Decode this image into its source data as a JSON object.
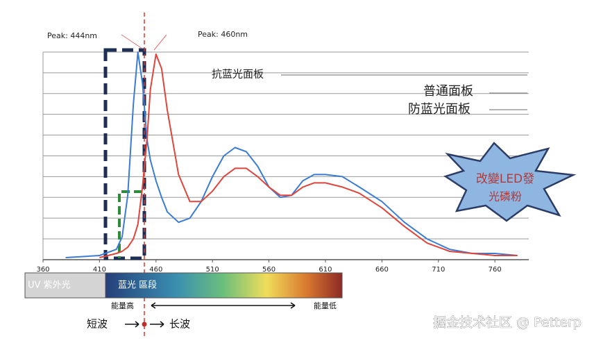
{
  "chart_data": {
    "type": "line",
    "x": [
      380,
      410,
      425,
      430,
      435,
      440,
      444,
      448,
      452,
      455,
      460,
      465,
      470,
      480,
      490,
      500,
      510,
      520,
      530,
      540,
      550,
      560,
      570,
      580,
      590,
      600,
      610,
      625,
      640,
      660,
      680,
      700,
      720,
      740,
      760,
      780
    ],
    "series": [
      {
        "name": "普通面板",
        "color": "#3a7bd5",
        "values": [
          1,
          2,
          5,
          11,
          31,
          75,
          100,
          85,
          58,
          48,
          38,
          30,
          23,
          18,
          20,
          28,
          40,
          50,
          54,
          52,
          45,
          35,
          30,
          31,
          38,
          41,
          41,
          40,
          35,
          28,
          18,
          10,
          5,
          3,
          3,
          2
        ]
      },
      {
        "name": "防蓝光面板",
        "color": "#e0443a",
        "values": [
          null,
          1,
          3,
          4,
          6,
          10,
          17,
          35,
          58,
          82,
          99,
          92,
          72,
          41,
          28,
          28,
          33,
          40,
          44,
          44,
          40,
          35,
          31,
          31,
          35,
          37,
          37,
          35,
          32,
          25,
          16,
          8,
          4,
          3,
          2,
          2
        ]
      }
    ],
    "xlim": [
      360,
      790
    ],
    "ylim": [
      0,
      100
    ],
    "xticks": [
      360,
      410,
      460,
      510,
      560,
      610,
      660,
      710,
      760
    ],
    "annotations": [
      "Peak: 444nm",
      "Peak: 460nm",
      "抗蓝光面板",
      "改變LED發",
      "光磷粉",
      "UV 紫外光",
      "蓝光 區段",
      "能量高",
      "能量低",
      "短波",
      "长波"
    ],
    "watermark": "掘金技术社区 @ Petterp"
  }
}
